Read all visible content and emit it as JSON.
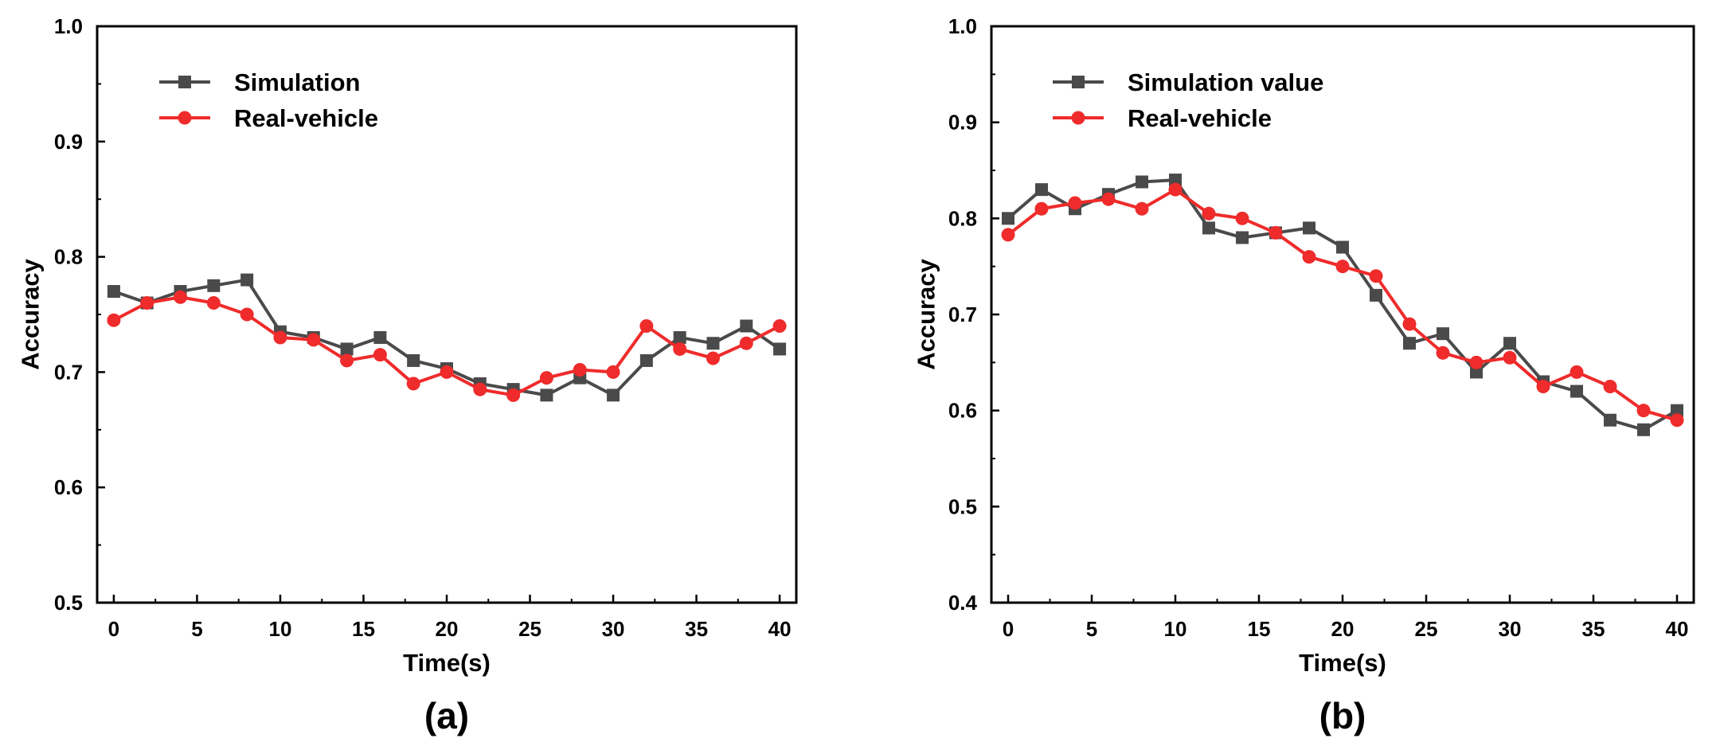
{
  "chart_data": [
    {
      "type": "line",
      "panel_label": "(a)",
      "xlabel": "Time(s)",
      "ylabel": "Accuracy",
      "xlim": [
        -1,
        41
      ],
      "ylim": [
        0.5,
        1.0
      ],
      "xticks": [
        0,
        5,
        10,
        15,
        20,
        25,
        30,
        35,
        40
      ],
      "xtick_labels": [
        "0",
        "5",
        "10",
        "15",
        "20",
        "25",
        "30",
        "35",
        "40"
      ],
      "yticks": [
        0.5,
        0.6,
        0.7,
        0.8,
        0.9,
        1.0
      ],
      "ytick_labels": [
        "0.5",
        "0.6",
        "0.7",
        "0.8",
        "0.9",
        "1.0"
      ],
      "legend_position": "top-left",
      "x": [
        0,
        2,
        4,
        6,
        8,
        10,
        12,
        14,
        16,
        18,
        20,
        22,
        24,
        26,
        28,
        30,
        32,
        34,
        36,
        38,
        40
      ],
      "series": [
        {
          "name": "Simulation",
          "color": "#4a4a4a",
          "marker": "square",
          "values": [
            0.77,
            0.76,
            0.77,
            0.775,
            0.78,
            0.735,
            0.73,
            0.72,
            0.73,
            0.71,
            0.703,
            0.69,
            0.685,
            0.68,
            0.695,
            0.68,
            0.71,
            0.73,
            0.725,
            0.74,
            0.72
          ]
        },
        {
          "name": "Real-vehicle",
          "color": "#ef2b2b",
          "marker": "circle",
          "values": [
            0.745,
            0.76,
            0.765,
            0.76,
            0.75,
            0.73,
            0.728,
            0.71,
            0.715,
            0.69,
            0.7,
            0.685,
            0.68,
            0.695,
            0.702,
            0.7,
            0.74,
            0.72,
            0.712,
            0.725,
            0.74
          ]
        }
      ]
    },
    {
      "type": "line",
      "panel_label": "(b)",
      "xlabel": "Time(s)",
      "ylabel": "Accuracy",
      "xlim": [
        -1,
        41
      ],
      "ylim": [
        0.4,
        1.0
      ],
      "xticks": [
        0,
        5,
        10,
        15,
        20,
        25,
        30,
        35,
        40
      ],
      "xtick_labels": [
        "0",
        "5",
        "10",
        "15",
        "20",
        "25",
        "30",
        "35",
        "40"
      ],
      "yticks": [
        0.4,
        0.5,
        0.6,
        0.7,
        0.8,
        0.9,
        1.0
      ],
      "ytick_labels": [
        "0.4",
        "0.5",
        "0.6",
        "0.7",
        "0.8",
        "0.9",
        "1.0"
      ],
      "legend_position": "top-left",
      "x": [
        0,
        2,
        4,
        6,
        8,
        10,
        12,
        14,
        16,
        18,
        20,
        22,
        24,
        26,
        28,
        30,
        32,
        34,
        36,
        38,
        40
      ],
      "series": [
        {
          "name": "Simulation value",
          "color": "#4a4a4a",
          "marker": "square",
          "values": [
            0.8,
            0.83,
            0.81,
            0.825,
            0.838,
            0.84,
            0.79,
            0.78,
            0.785,
            0.79,
            0.77,
            0.72,
            0.67,
            0.68,
            0.64,
            0.67,
            0.63,
            0.62,
            0.59,
            0.58,
            0.6
          ]
        },
        {
          "name": "Real-vehicle",
          "color": "#ef2b2b",
          "marker": "circle",
          "values": [
            0.783,
            0.81,
            0.816,
            0.82,
            0.81,
            0.83,
            0.805,
            0.8,
            0.785,
            0.76,
            0.75,
            0.74,
            0.69,
            0.66,
            0.65,
            0.655,
            0.625,
            0.64,
            0.625,
            0.6,
            0.59
          ]
        }
      ]
    }
  ]
}
